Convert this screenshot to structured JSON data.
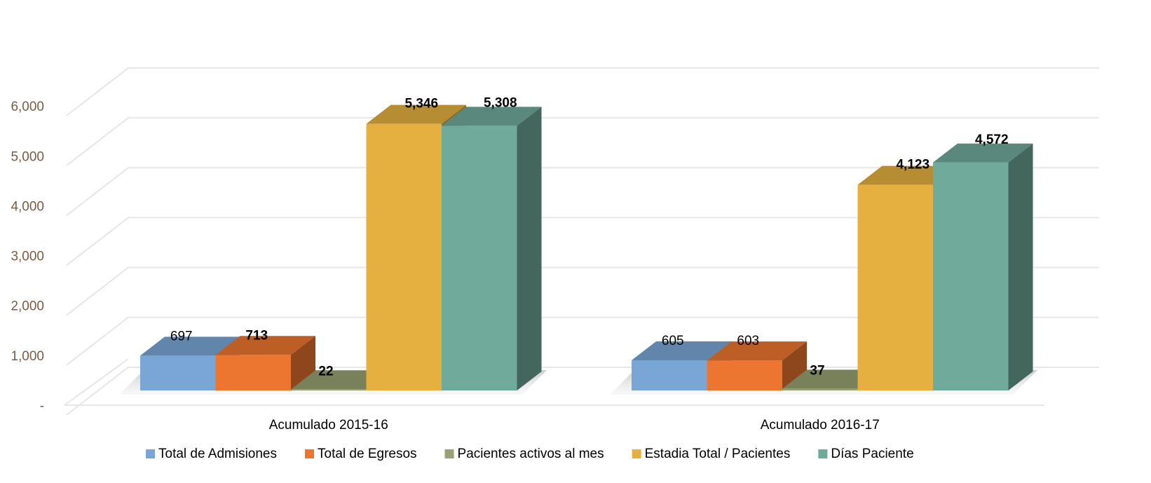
{
  "chart_data": {
    "type": "bar3d",
    "categories": [
      "Acumulado 2015-16",
      "Acumulado 2016-17"
    ],
    "series": [
      {
        "name": "Total de Admisiones",
        "color": "#7aa6d6",
        "values": [
          697,
          605
        ]
      },
      {
        "name": "Total de Egresos",
        "color": "#ec7530",
        "values": [
          713,
          603
        ]
      },
      {
        "name": "Pacientes activos al mes",
        "color": "#97a171",
        "values": [
          22,
          37
        ]
      },
      {
        "name": "Estadia Total / Pacientes",
        "color": "#e5b040",
        "values": [
          5346,
          4123
        ]
      },
      {
        "name": "Días Paciente",
        "color": "#70aa9b",
        "values": [
          5308,
          4572
        ]
      }
    ],
    "value_labels": [
      [
        "697",
        "605"
      ],
      [
        "713",
        "603"
      ],
      [
        "22",
        "37"
      ],
      [
        "5,346",
        "4,123"
      ],
      [
        "5,308",
        "4,572"
      ]
    ],
    "ylim": [
      0,
      7000
    ],
    "yticks": [
      {
        "value": 0,
        "label": "-"
      },
      {
        "value": 1000,
        "label": "1,000"
      },
      {
        "value": 2000,
        "label": "2,000"
      },
      {
        "value": 3000,
        "label": "3,000"
      },
      {
        "value": 4000,
        "label": "4,000"
      },
      {
        "value": 5000,
        "label": "5,000"
      },
      {
        "value": 6000,
        "label": "6,000"
      }
    ],
    "grid": true
  }
}
